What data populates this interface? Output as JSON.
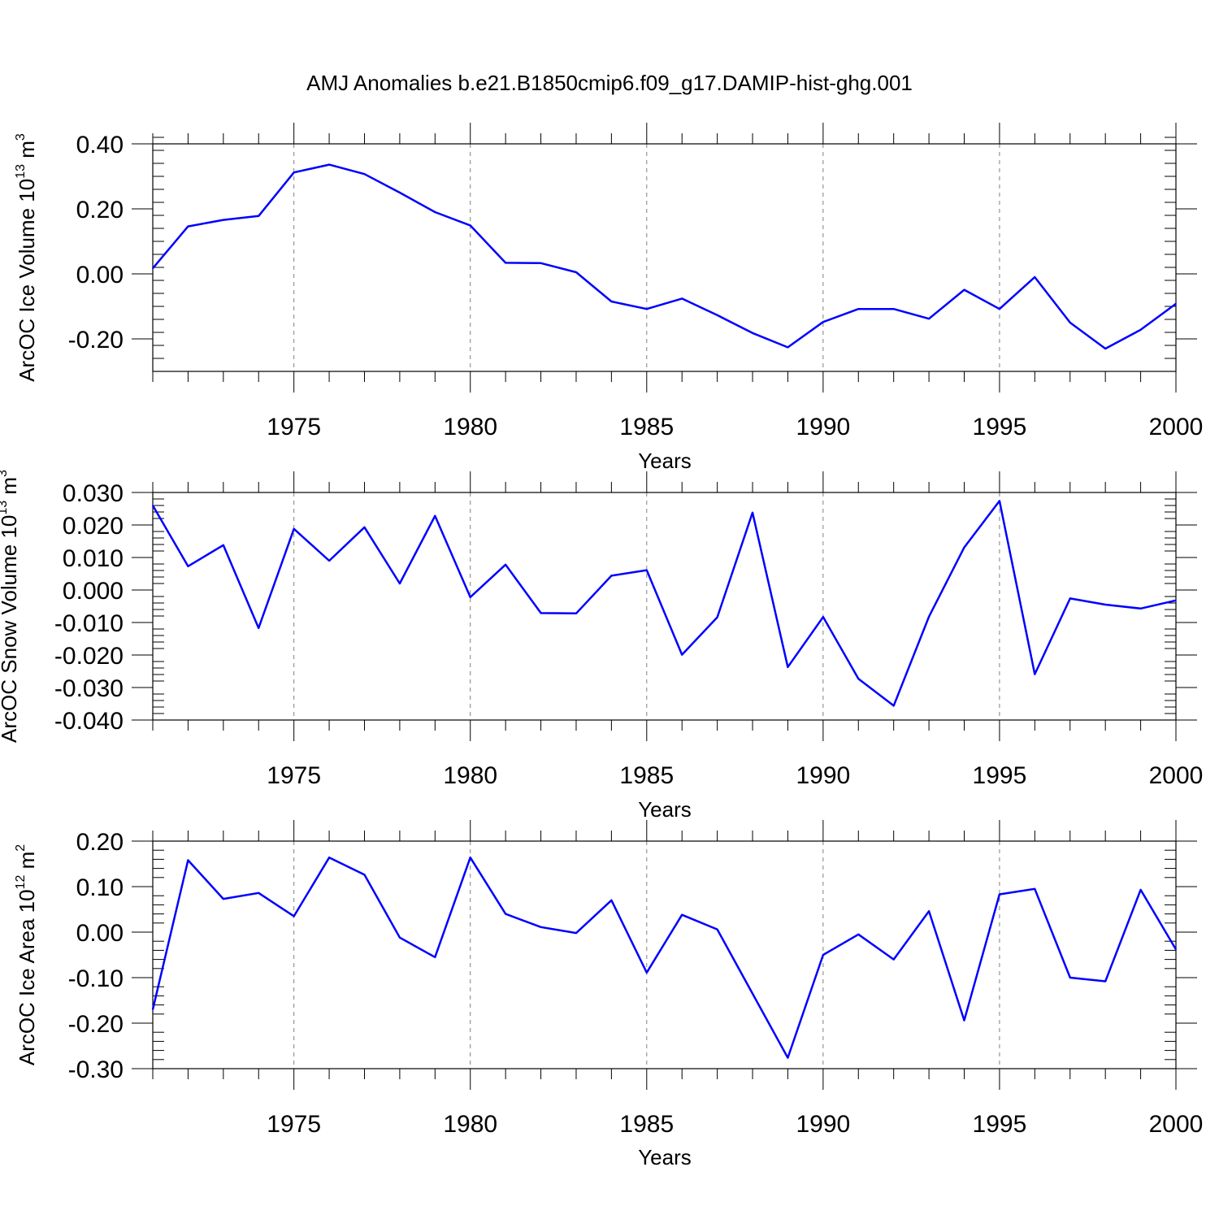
{
  "figure": {
    "title": "AMJ Anomalies b.e21.B1850cmip6.f09_g17.DAMIP-hist-ghg.001",
    "line_color": "#0000ff",
    "gridline_color": "#808080",
    "axis_color": "#000000"
  },
  "chart_data": [
    {
      "type": "line",
      "title": "AMJ Anomalies b.e21.B1850cmip6.f09_g17.DAMIP-hist-ghg.001",
      "xlabel": "Years",
      "ylabel_main": "ArcOC Ice Volume 10",
      "ylabel_exp": "13",
      "ylabel_unit": " m",
      "ylabel_unit_exp": "3",
      "xlim": [
        1971,
        2000
      ],
      "ylim": [
        -0.3,
        0.4
      ],
      "x_major_ticks": [
        1975,
        1980,
        1985,
        1990,
        1995,
        2000
      ],
      "x_tick_labels": [
        "1975",
        "1980",
        "1985",
        "1990",
        "1995",
        "2000"
      ],
      "y_major_ticks": [
        -0.2,
        0.0,
        0.2,
        0.4
      ],
      "y_tick_labels": [
        "-0.20",
        "0.00",
        "0.20",
        "0.40"
      ],
      "y_minor_step": 0.04,
      "grid": "dashed vertical at major x ticks",
      "x": [
        1971,
        1972,
        1973,
        1974,
        1975,
        1976,
        1977,
        1978,
        1979,
        1980,
        1981,
        1982,
        1983,
        1984,
        1985,
        1986,
        1987,
        1988,
        1989,
        1990,
        1991,
        1992,
        1993,
        1994,
        1995,
        1996,
        1997,
        1998,
        1999,
        2000
      ],
      "y": [
        0.017,
        0.146,
        0.166,
        0.178,
        0.312,
        0.336,
        0.307,
        0.25,
        0.19,
        0.149,
        0.034,
        0.033,
        0.005,
        -0.085,
        -0.108,
        -0.076,
        -0.127,
        -0.182,
        -0.226,
        -0.148,
        -0.108,
        -0.108,
        -0.138,
        -0.049,
        -0.108,
        -0.01,
        -0.15,
        -0.23,
        -0.172,
        -0.092
      ]
    },
    {
      "type": "line",
      "xlabel": "Years",
      "ylabel_main": "ArcOC Snow Volume 10",
      "ylabel_exp": "13",
      "ylabel_unit": " m",
      "ylabel_unit_exp": "3",
      "xlim": [
        1971,
        2000
      ],
      "ylim": [
        -0.04,
        0.03
      ],
      "x_major_ticks": [
        1975,
        1980,
        1985,
        1990,
        1995,
        2000
      ],
      "x_tick_labels": [
        "1975",
        "1980",
        "1985",
        "1990",
        "1995",
        "2000"
      ],
      "y_major_ticks": [
        -0.04,
        -0.03,
        -0.02,
        -0.01,
        0.0,
        0.01,
        0.02,
        0.03
      ],
      "y_tick_labels": [
        "-0.040",
        "-0.030",
        "-0.020",
        "-0.010",
        "0.000",
        "0.010",
        "0.020",
        "0.030"
      ],
      "y_minor_step": 0.002,
      "grid": "dashed vertical at major x ticks",
      "x": [
        1971,
        1972,
        1973,
        1974,
        1975,
        1976,
        1977,
        1978,
        1979,
        1980,
        1981,
        1982,
        1983,
        1984,
        1985,
        1986,
        1987,
        1988,
        1989,
        1990,
        1991,
        1992,
        1993,
        1994,
        1995,
        1996,
        1997,
        1998,
        1999,
        2000
      ],
      "y": [
        0.026,
        0.0073,
        0.0138,
        -0.0117,
        0.0188,
        0.009,
        0.0193,
        0.002,
        0.0228,
        -0.0022,
        0.0078,
        -0.0071,
        -0.0072,
        0.0044,
        0.0061,
        -0.0199,
        -0.0084,
        0.0238,
        -0.0237,
        -0.0083,
        -0.0273,
        -0.0356,
        -0.0082,
        0.0131,
        0.0274,
        -0.0259,
        -0.0026,
        -0.0045,
        -0.0057,
        -0.0032
      ]
    },
    {
      "type": "line",
      "xlabel": "Years",
      "ylabel_main": "ArcOC Ice Area 10",
      "ylabel_exp": "12",
      "ylabel_unit": " m",
      "ylabel_unit_exp": "2",
      "xlim": [
        1971,
        2000
      ],
      "ylim": [
        -0.3,
        0.2
      ],
      "x_major_ticks": [
        1975,
        1980,
        1985,
        1990,
        1995,
        2000
      ],
      "x_tick_labels": [
        "1975",
        "1980",
        "1985",
        "1990",
        "1995",
        "2000"
      ],
      "y_major_ticks": [
        -0.3,
        -0.2,
        -0.1,
        0.0,
        0.1,
        0.2
      ],
      "y_tick_labels": [
        "-0.30",
        "-0.20",
        "-0.10",
        "0.00",
        "0.10",
        "0.20"
      ],
      "y_minor_step": 0.02,
      "grid": "dashed vertical at major x ticks",
      "x": [
        1971,
        1972,
        1973,
        1974,
        1975,
        1976,
        1977,
        1978,
        1979,
        1980,
        1981,
        1982,
        1983,
        1984,
        1985,
        1986,
        1987,
        1988,
        1989,
        1990,
        1991,
        1992,
        1993,
        1994,
        1995,
        1996,
        1997,
        1998,
        1999,
        2000
      ],
      "y": [
        -0.17,
        0.158,
        0.073,
        0.086,
        0.035,
        0.164,
        0.126,
        -0.012,
        -0.055,
        0.164,
        0.04,
        0.011,
        -0.002,
        0.07,
        -0.089,
        0.038,
        0.006,
        -0.135,
        -0.276,
        -0.05,
        -0.005,
        -0.06,
        0.046,
        -0.194,
        0.083,
        0.095,
        -0.1,
        -0.108,
        0.093,
        -0.038
      ]
    }
  ]
}
